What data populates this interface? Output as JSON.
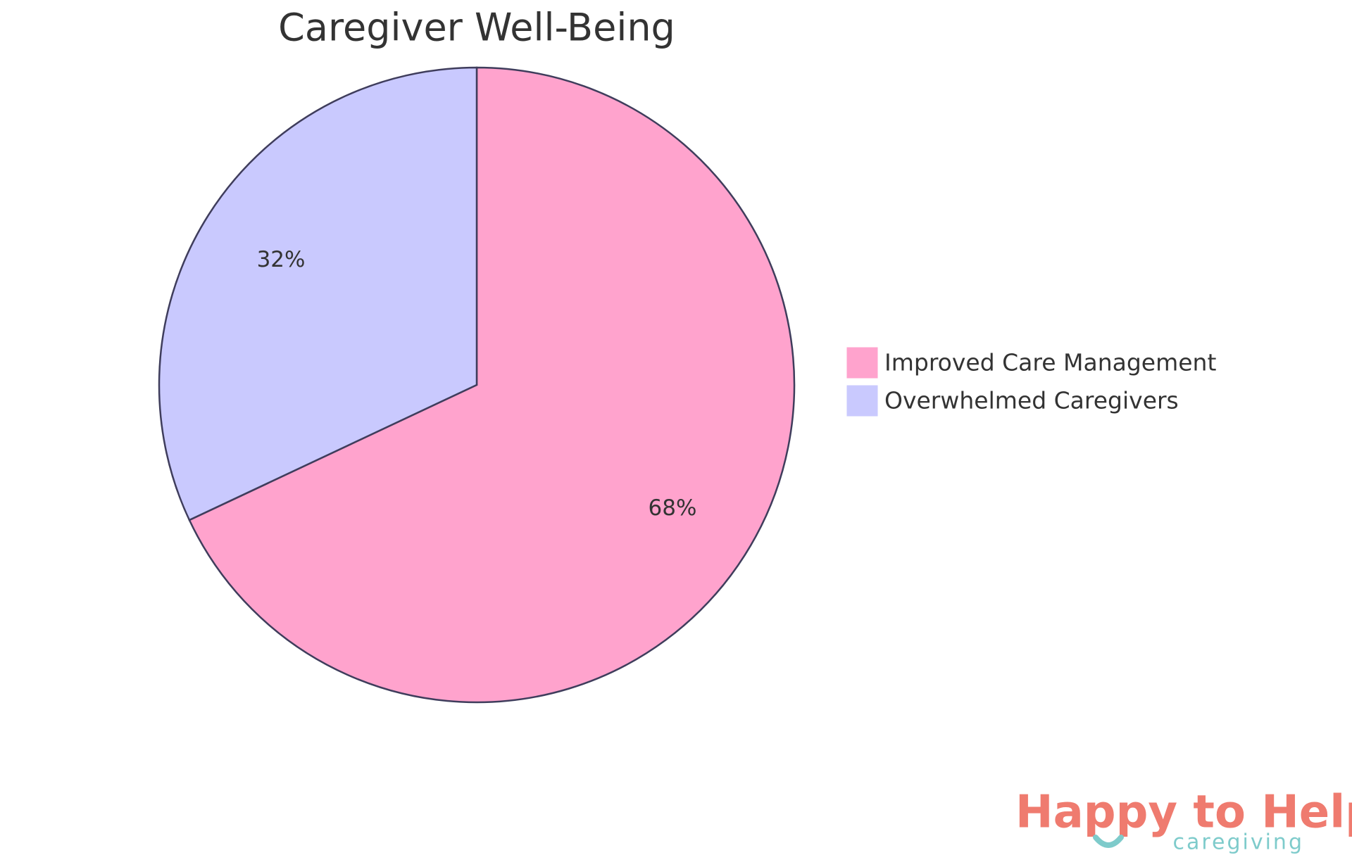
{
  "chart_data": {
    "type": "pie",
    "title": "Caregiver Well-Being",
    "categories": [
      "Improved Care Management",
      "Overwhelmed Caregivers"
    ],
    "values": [
      68,
      32
    ],
    "value_labels": [
      "68%",
      "32%"
    ],
    "colors": [
      "#ffa3cd",
      "#c9c9fe"
    ],
    "legend": "right"
  },
  "logo": {
    "title": "Happy to Help",
    "subtitle": "caregiving"
  }
}
